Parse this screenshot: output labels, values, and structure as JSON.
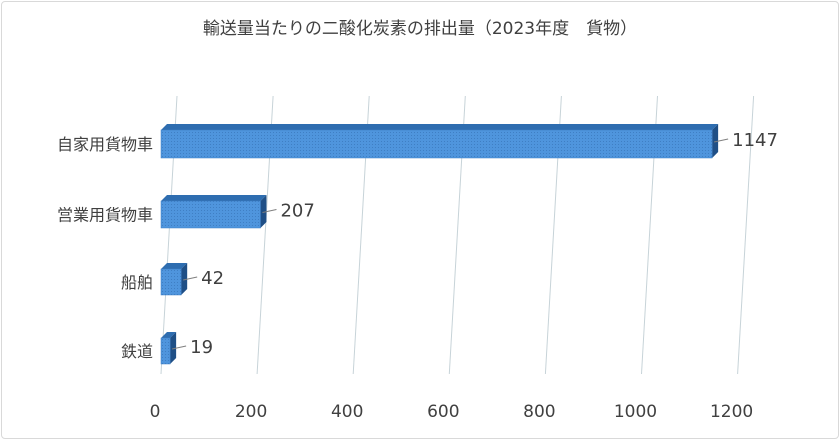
{
  "chart_data": {
    "type": "bar",
    "orientation": "horizontal",
    "title": "輸送量当たりの二酸化炭素の排出量（2023年度　貨物）",
    "categories": [
      "自家用貨物車",
      "営業用貨物車",
      "船舶",
      "鉄道"
    ],
    "series": [
      {
        "values": [
          1147,
          207,
          42,
          19
        ]
      }
    ],
    "x_ticks": [
      "0",
      "200",
      "400",
      "600",
      "800",
      "1000",
      "1200"
    ],
    "xlim": [
      0,
      1200
    ],
    "grid": true,
    "legend": "none",
    "colors": {
      "bar_front": "#4a90d9",
      "bar_top": "#2e6db0",
      "bar_side": "#1f4f86",
      "gridline": "#c7d3d8",
      "text": "#404040"
    }
  }
}
